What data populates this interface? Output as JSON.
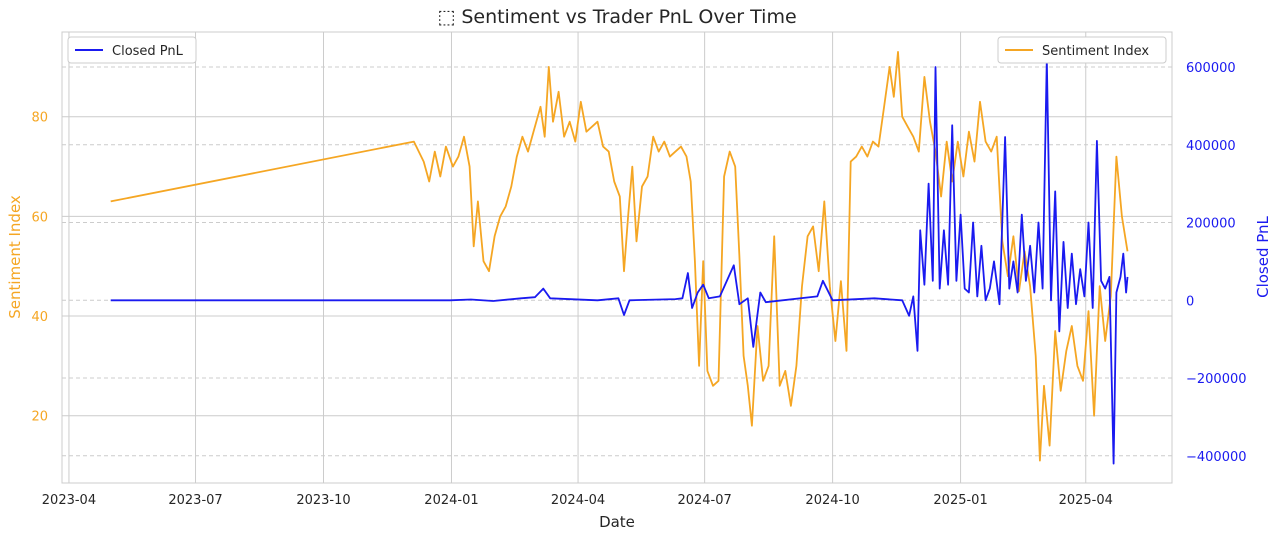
{
  "chart_data": {
    "type": "line",
    "title": "⬚ Sentiment vs Trader PnL Over Time",
    "xlabel": "Date",
    "ylabel_left": "Sentiment Index",
    "ylabel_right": "Closed PnL",
    "x_ticks": [
      "2023-04",
      "2023-07",
      "2023-10",
      "2024-01",
      "2024-04",
      "2024-07",
      "2024-10",
      "2025-01",
      "2025-04"
    ],
    "y_left_ticks": [
      "20",
      "40",
      "60",
      "80"
    ],
    "y_right_ticks": [
      "−400000",
      "−200000",
      "0",
      "200000",
      "400000",
      "600000"
    ],
    "xlim": [
      "2023-03-27",
      "2025-06-02"
    ],
    "ylim_left": [
      6.5,
      97
    ],
    "ylim_right": [
      -470000,
      690000
    ],
    "grid": true,
    "colors": {
      "sentiment": "#f5a623",
      "pnl": "#1a1af0",
      "grid": "#cccccc"
    },
    "legend_left": "Closed PnL",
    "legend_right": "Sentiment Index",
    "series": [
      {
        "name": "Sentiment Index",
        "axis": "left",
        "points": [
          [
            "2023-05-01",
            63
          ],
          [
            "2023-12-05",
            75
          ],
          [
            "2023-12-12",
            71
          ],
          [
            "2023-12-16",
            67
          ],
          [
            "2023-12-20",
            73
          ],
          [
            "2023-12-24",
            68
          ],
          [
            "2023-12-28",
            74
          ],
          [
            "2024-01-02",
            70
          ],
          [
            "2024-01-06",
            72
          ],
          [
            "2024-01-10",
            76
          ],
          [
            "2024-01-14",
            70
          ],
          [
            "2024-01-17",
            54
          ],
          [
            "2024-01-20",
            63
          ],
          [
            "2024-01-24",
            51
          ],
          [
            "2024-01-28",
            49
          ],
          [
            "2024-02-01",
            56
          ],
          [
            "2024-02-05",
            60
          ],
          [
            "2024-02-09",
            62
          ],
          [
            "2024-02-13",
            66
          ],
          [
            "2024-02-17",
            72
          ],
          [
            "2024-02-21",
            76
          ],
          [
            "2024-02-25",
            73
          ],
          [
            "2024-03-01",
            78
          ],
          [
            "2024-03-05",
            82
          ],
          [
            "2024-03-08",
            76
          ],
          [
            "2024-03-11",
            90
          ],
          [
            "2024-03-14",
            79
          ],
          [
            "2024-03-18",
            85
          ],
          [
            "2024-03-22",
            76
          ],
          [
            "2024-03-26",
            79
          ],
          [
            "2024-03-30",
            75
          ],
          [
            "2024-04-03",
            83
          ],
          [
            "2024-04-07",
            77
          ],
          [
            "2024-04-11",
            78
          ],
          [
            "2024-04-15",
            79
          ],
          [
            "2024-04-19",
            74
          ],
          [
            "2024-04-23",
            73
          ],
          [
            "2024-04-27",
            67
          ],
          [
            "2024-05-01",
            64
          ],
          [
            "2024-05-04",
            49
          ],
          [
            "2024-05-07",
            60
          ],
          [
            "2024-05-10",
            70
          ],
          [
            "2024-05-13",
            55
          ],
          [
            "2024-05-17",
            66
          ],
          [
            "2024-05-21",
            68
          ],
          [
            "2024-05-25",
            76
          ],
          [
            "2024-05-29",
            73
          ],
          [
            "2024-06-02",
            75
          ],
          [
            "2024-06-06",
            72
          ],
          [
            "2024-06-10",
            73
          ],
          [
            "2024-06-14",
            74
          ],
          [
            "2024-06-18",
            72
          ],
          [
            "2024-06-21",
            67
          ],
          [
            "2024-06-24",
            51
          ],
          [
            "2024-06-27",
            30
          ],
          [
            "2024-06-30",
            51
          ],
          [
            "2024-07-03",
            29
          ],
          [
            "2024-07-07",
            26
          ],
          [
            "2024-07-11",
            27
          ],
          [
            "2024-07-15",
            68
          ],
          [
            "2024-07-19",
            73
          ],
          [
            "2024-07-23",
            70
          ],
          [
            "2024-07-26",
            52
          ],
          [
            "2024-07-29",
            32
          ],
          [
            "2024-08-01",
            26
          ],
          [
            "2024-08-04",
            18
          ],
          [
            "2024-08-08",
            38
          ],
          [
            "2024-08-12",
            27
          ],
          [
            "2024-08-16",
            30
          ],
          [
            "2024-08-20",
            56
          ],
          [
            "2024-08-24",
            26
          ],
          [
            "2024-08-28",
            29
          ],
          [
            "2024-09-01",
            22
          ],
          [
            "2024-09-05",
            30
          ],
          [
            "2024-09-09",
            46
          ],
          [
            "2024-09-13",
            56
          ],
          [
            "2024-09-17",
            58
          ],
          [
            "2024-09-21",
            49
          ],
          [
            "2024-09-25",
            63
          ],
          [
            "2024-09-29",
            46
          ],
          [
            "2024-10-03",
            35
          ],
          [
            "2024-10-07",
            47
          ],
          [
            "2024-10-11",
            33
          ],
          [
            "2024-10-14",
            71
          ],
          [
            "2024-10-18",
            72
          ],
          [
            "2024-10-22",
            74
          ],
          [
            "2024-10-26",
            72
          ],
          [
            "2024-10-30",
            75
          ],
          [
            "2024-11-03",
            74
          ],
          [
            "2024-11-07",
            82
          ],
          [
            "2024-11-11",
            90
          ],
          [
            "2024-11-14",
            84
          ],
          [
            "2024-11-17",
            93
          ],
          [
            "2024-11-20",
            80
          ],
          [
            "2024-11-24",
            78
          ],
          [
            "2024-11-28",
            76
          ],
          [
            "2024-12-02",
            73
          ],
          [
            "2024-12-06",
            88
          ],
          [
            "2024-12-10",
            79
          ],
          [
            "2024-12-14",
            73
          ],
          [
            "2024-12-18",
            64
          ],
          [
            "2024-12-22",
            75
          ],
          [
            "2024-12-26",
            67
          ],
          [
            "2024-12-30",
            75
          ],
          [
            "2025-01-03",
            68
          ],
          [
            "2025-01-07",
            77
          ],
          [
            "2025-01-11",
            71
          ],
          [
            "2025-01-15",
            83
          ],
          [
            "2025-01-19",
            75
          ],
          [
            "2025-01-23",
            73
          ],
          [
            "2025-01-27",
            76
          ],
          [
            "2025-01-31",
            55
          ],
          [
            "2025-02-04",
            48
          ],
          [
            "2025-02-08",
            56
          ],
          [
            "2025-02-12",
            45
          ],
          [
            "2025-02-16",
            53
          ],
          [
            "2025-02-20",
            46
          ],
          [
            "2025-02-24",
            32
          ],
          [
            "2025-02-27",
            11
          ],
          [
            "2025-03-02",
            26
          ],
          [
            "2025-03-06",
            14
          ],
          [
            "2025-03-10",
            37
          ],
          [
            "2025-03-14",
            25
          ],
          [
            "2025-03-18",
            33
          ],
          [
            "2025-03-22",
            38
          ],
          [
            "2025-03-26",
            30
          ],
          [
            "2025-03-30",
            27
          ],
          [
            "2025-04-03",
            41
          ],
          [
            "2025-04-07",
            20
          ],
          [
            "2025-04-11",
            46
          ],
          [
            "2025-04-15",
            35
          ],
          [
            "2025-04-19",
            44
          ],
          [
            "2025-04-23",
            72
          ],
          [
            "2025-04-27",
            60
          ],
          [
            "2025-05-01",
            53
          ]
        ]
      },
      {
        "name": "Closed PnL",
        "axis": "right",
        "points": [
          [
            "2023-05-01",
            0
          ],
          [
            "2023-12-31",
            0
          ],
          [
            "2024-01-15",
            2000
          ],
          [
            "2024-01-31",
            -2000
          ],
          [
            "2024-02-20",
            5000
          ],
          [
            "2024-03-01",
            8000
          ],
          [
            "2024-03-07",
            30000
          ],
          [
            "2024-03-12",
            5000
          ],
          [
            "2024-04-15",
            0
          ],
          [
            "2024-04-30",
            5000
          ],
          [
            "2024-05-04",
            -38000
          ],
          [
            "2024-05-08",
            0
          ],
          [
            "2024-06-10",
            3000
          ],
          [
            "2024-06-15",
            5000
          ],
          [
            "2024-06-19",
            70000
          ],
          [
            "2024-06-22",
            -20000
          ],
          [
            "2024-06-26",
            20000
          ],
          [
            "2024-06-30",
            40000
          ],
          [
            "2024-07-04",
            5000
          ],
          [
            "2024-07-12",
            10000
          ],
          [
            "2024-07-22",
            90000
          ],
          [
            "2024-07-26",
            -10000
          ],
          [
            "2024-08-01",
            5000
          ],
          [
            "2024-08-05",
            -120000
          ],
          [
            "2024-08-10",
            20000
          ],
          [
            "2024-08-14",
            -5000
          ],
          [
            "2024-09-20",
            10000
          ],
          [
            "2024-09-24",
            50000
          ],
          [
            "2024-10-01",
            0
          ],
          [
            "2024-10-31",
            5000
          ],
          [
            "2024-11-20",
            0
          ],
          [
            "2024-11-25",
            -40000
          ],
          [
            "2024-11-28",
            10000
          ],
          [
            "2024-12-01",
            -130000
          ],
          [
            "2024-12-03",
            180000
          ],
          [
            "2024-12-06",
            40000
          ],
          [
            "2024-12-09",
            300000
          ],
          [
            "2024-12-12",
            50000
          ],
          [
            "2024-12-14",
            600000
          ],
          [
            "2024-12-17",
            30000
          ],
          [
            "2024-12-20",
            180000
          ],
          [
            "2024-12-23",
            40000
          ],
          [
            "2024-12-26",
            450000
          ],
          [
            "2024-12-29",
            50000
          ],
          [
            "2025-01-01",
            220000
          ],
          [
            "2025-01-04",
            30000
          ],
          [
            "2025-01-07",
            20000
          ],
          [
            "2025-01-10",
            200000
          ],
          [
            "2025-01-13",
            10000
          ],
          [
            "2025-01-16",
            140000
          ],
          [
            "2025-01-19",
            0
          ],
          [
            "2025-01-22",
            30000
          ],
          [
            "2025-01-25",
            100000
          ],
          [
            "2025-01-29",
            -10000
          ],
          [
            "2025-02-02",
            420000
          ],
          [
            "2025-02-05",
            30000
          ],
          [
            "2025-02-08",
            100000
          ],
          [
            "2025-02-11",
            20000
          ],
          [
            "2025-02-14",
            220000
          ],
          [
            "2025-02-17",
            50000
          ],
          [
            "2025-02-20",
            140000
          ],
          [
            "2025-02-23",
            20000
          ],
          [
            "2025-02-26",
            200000
          ],
          [
            "2025-03-01",
            30000
          ],
          [
            "2025-03-04",
            620000
          ],
          [
            "2025-03-07",
            0
          ],
          [
            "2025-03-10",
            280000
          ],
          [
            "2025-03-13",
            -80000
          ],
          [
            "2025-03-16",
            150000
          ],
          [
            "2025-03-19",
            -20000
          ],
          [
            "2025-03-22",
            120000
          ],
          [
            "2025-03-25",
            -10000
          ],
          [
            "2025-03-28",
            80000
          ],
          [
            "2025-03-31",
            10000
          ],
          [
            "2025-04-03",
            200000
          ],
          [
            "2025-04-06",
            -20000
          ],
          [
            "2025-04-09",
            410000
          ],
          [
            "2025-04-12",
            50000
          ],
          [
            "2025-04-15",
            30000
          ],
          [
            "2025-04-18",
            60000
          ],
          [
            "2025-04-21",
            -420000
          ],
          [
            "2025-04-23",
            20000
          ],
          [
            "2025-04-26",
            60000
          ],
          [
            "2025-04-28",
            120000
          ],
          [
            "2025-04-30",
            20000
          ],
          [
            "2025-05-01",
            60000
          ]
        ]
      }
    ]
  }
}
